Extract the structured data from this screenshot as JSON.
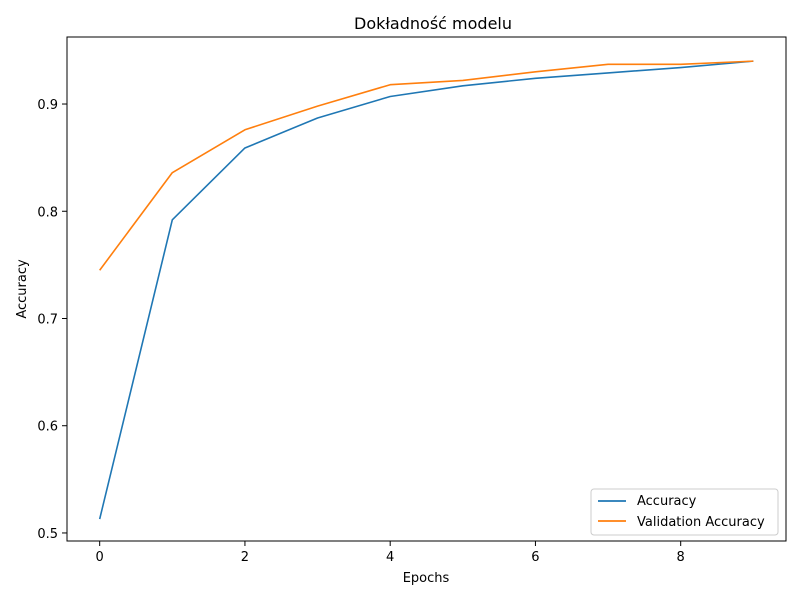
{
  "chart_data": {
    "type": "line",
    "title": "Dokładność modelu",
    "xlabel": "Epochs",
    "ylabel": "Accuracy",
    "xlim": [
      -0.45,
      9.45
    ],
    "ylim": [
      0.4925,
      0.9625
    ],
    "x": [
      0,
      1,
      2,
      3,
      4,
      5,
      6,
      7,
      8,
      9
    ],
    "xticks": [
      0,
      2,
      4,
      6,
      8
    ],
    "yticks": [
      0.5,
      0.6,
      0.7,
      0.8,
      0.9
    ],
    "grid": false,
    "legend_position": "bottom-right",
    "series": [
      {
        "name": "Accuracy",
        "color": "#1f77b4",
        "values": [
          0.513,
          0.792,
          0.859,
          0.887,
          0.907,
          0.917,
          0.924,
          0.929,
          0.934,
          0.94
        ]
      },
      {
        "name": "Validation Accuracy",
        "color": "#ff7f0e",
        "values": [
          0.745,
          0.836,
          0.876,
          0.898,
          0.918,
          0.922,
          0.93,
          0.937,
          0.937,
          0.94
        ]
      }
    ]
  }
}
